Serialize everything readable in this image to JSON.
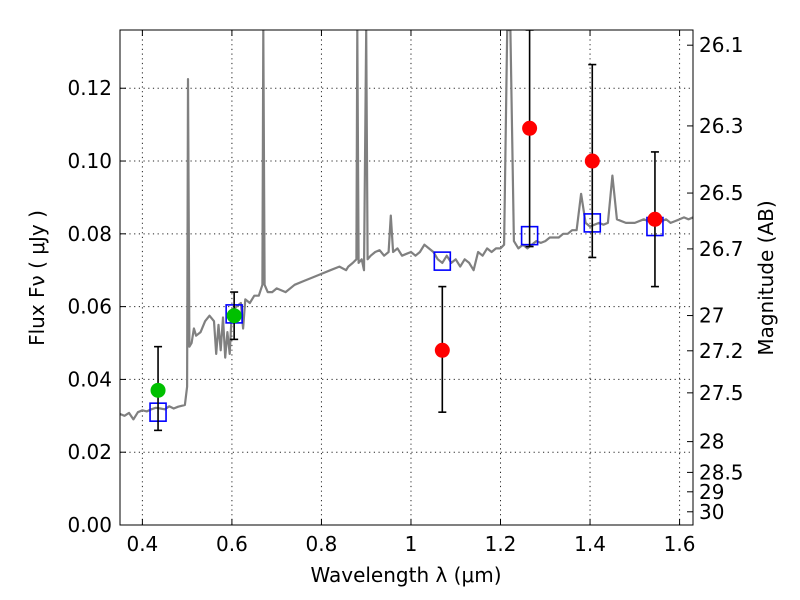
{
  "chart_data": {
    "type": "scatter",
    "title": "",
    "xlabel": "Wavelength  λ (μm)",
    "ylabel": "Flux  Fν  ( μJy )",
    "ylabel_right": "Magnitude (AB)",
    "xlim": [
      0.35,
      1.63
    ],
    "ylim": [
      0.0,
      0.136
    ],
    "grid": true,
    "x_ticks": [
      {
        "value": 0.4,
        "label": "0.4"
      },
      {
        "value": 0.6,
        "label": "0.6"
      },
      {
        "value": 0.8,
        "label": "0.8"
      },
      {
        "value": 1.0,
        "label": "1"
      },
      {
        "value": 1.2,
        "label": "1.2"
      },
      {
        "value": 1.4,
        "label": "1.4"
      },
      {
        "value": 1.6,
        "label": "1.6"
      }
    ],
    "y_ticks": [
      {
        "value": 0.0,
        "label": "0.00"
      },
      {
        "value": 0.02,
        "label": "0.02"
      },
      {
        "value": 0.04,
        "label": "0.04"
      },
      {
        "value": 0.06,
        "label": "0.06"
      },
      {
        "value": 0.08,
        "label": "0.08"
      },
      {
        "value": 0.1,
        "label": "0.10"
      },
      {
        "value": 0.12,
        "label": "0.12"
      }
    ],
    "right_ticks": [
      {
        "mag": 26.1,
        "label": "26.1"
      },
      {
        "mag": 26.3,
        "label": "26.3"
      },
      {
        "mag": 26.5,
        "label": "26.5"
      },
      {
        "mag": 26.7,
        "label": "26.7"
      },
      {
        "mag": 27.0,
        "label": "27"
      },
      {
        "mag": 27.2,
        "label": "27.2"
      },
      {
        "mag": 27.5,
        "label": "27.5"
      },
      {
        "mag": 28.0,
        "label": "28"
      },
      {
        "mag": 28.5,
        "label": "28.5"
      },
      {
        "mag": 29.0,
        "label": "29"
      },
      {
        "mag": 30.0,
        "label": "30"
      }
    ],
    "series": [
      {
        "kind": "line",
        "color": "#808080",
        "points": [
          [
            0.35,
            0.0305
          ],
          [
            0.36,
            0.03
          ],
          [
            0.37,
            0.0308
          ],
          [
            0.38,
            0.029
          ],
          [
            0.39,
            0.031
          ],
          [
            0.4,
            0.0315
          ],
          [
            0.41,
            0.0312
          ],
          [
            0.42,
            0.0318
          ],
          [
            0.43,
            0.0322
          ],
          [
            0.44,
            0.032
          ],
          [
            0.45,
            0.0318
          ],
          [
            0.46,
            0.0326
          ],
          [
            0.47,
            0.032
          ],
          [
            0.48,
            0.0325
          ],
          [
            0.49,
            0.0328
          ],
          [
            0.495,
            0.033
          ],
          [
            0.5,
            0.038
          ],
          [
            0.502,
            0.1225
          ],
          [
            0.505,
            0.049
          ],
          [
            0.51,
            0.05
          ],
          [
            0.515,
            0.054
          ],
          [
            0.52,
            0.052
          ],
          [
            0.53,
            0.053
          ],
          [
            0.54,
            0.056
          ],
          [
            0.55,
            0.0575
          ],
          [
            0.56,
            0.056
          ],
          [
            0.565,
            0.047
          ],
          [
            0.57,
            0.055
          ],
          [
            0.575,
            0.048
          ],
          [
            0.58,
            0.057
          ],
          [
            0.585,
            0.046
          ],
          [
            0.59,
            0.053
          ],
          [
            0.595,
            0.047
          ],
          [
            0.6,
            0.059
          ],
          [
            0.61,
            0.06
          ],
          [
            0.62,
            0.061
          ],
          [
            0.625,
            0.054
          ],
          [
            0.63,
            0.062
          ],
          [
            0.64,
            0.061
          ],
          [
            0.65,
            0.063
          ],
          [
            0.66,
            0.063
          ],
          [
            0.668,
            0.066
          ],
          [
            0.67,
            0.136
          ],
          [
            0.673,
            0.066
          ],
          [
            0.68,
            0.064
          ],
          [
            0.69,
            0.064
          ],
          [
            0.7,
            0.065
          ],
          [
            0.72,
            0.064
          ],
          [
            0.74,
            0.066
          ],
          [
            0.76,
            0.067
          ],
          [
            0.78,
            0.068
          ],
          [
            0.8,
            0.069
          ],
          [
            0.82,
            0.07
          ],
          [
            0.84,
            0.071
          ],
          [
            0.855,
            0.07
          ],
          [
            0.86,
            0.071
          ],
          [
            0.87,
            0.072
          ],
          [
            0.878,
            0.073
          ],
          [
            0.88,
            0.136
          ],
          [
            0.883,
            0.072
          ],
          [
            0.89,
            0.073
          ],
          [
            0.895,
            0.07
          ],
          [
            0.9,
            0.136
          ],
          [
            0.903,
            0.073
          ],
          [
            0.91,
            0.074
          ],
          [
            0.92,
            0.075
          ],
          [
            0.93,
            0.0755
          ],
          [
            0.94,
            0.074
          ],
          [
            0.95,
            0.075
          ],
          [
            0.955,
            0.085
          ],
          [
            0.96,
            0.075
          ],
          [
            0.97,
            0.076
          ],
          [
            0.98,
            0.074
          ],
          [
            0.99,
            0.0745
          ],
          [
            1.0,
            0.075
          ],
          [
            1.01,
            0.074
          ],
          [
            1.02,
            0.075
          ],
          [
            1.03,
            0.077
          ],
          [
            1.04,
            0.076
          ],
          [
            1.05,
            0.075
          ],
          [
            1.06,
            0.073
          ],
          [
            1.07,
            0.072
          ],
          [
            1.08,
            0.074
          ],
          [
            1.09,
            0.072
          ],
          [
            1.1,
            0.073
          ],
          [
            1.11,
            0.071
          ],
          [
            1.12,
            0.073
          ],
          [
            1.13,
            0.072
          ],
          [
            1.14,
            0.07
          ],
          [
            1.15,
            0.075
          ],
          [
            1.16,
            0.074
          ],
          [
            1.17,
            0.076
          ],
          [
            1.18,
            0.075
          ],
          [
            1.19,
            0.076
          ],
          [
            1.2,
            0.076
          ],
          [
            1.208,
            0.077
          ],
          [
            1.215,
            0.136
          ],
          [
            1.222,
            0.136
          ],
          [
            1.23,
            0.078
          ],
          [
            1.24,
            0.076
          ],
          [
            1.25,
            0.077
          ],
          [
            1.26,
            0.076
          ],
          [
            1.27,
            0.077
          ],
          [
            1.28,
            0.078
          ],
          [
            1.29,
            0.0775
          ],
          [
            1.3,
            0.078
          ],
          [
            1.31,
            0.079
          ],
          [
            1.32,
            0.079
          ],
          [
            1.33,
            0.079
          ],
          [
            1.34,
            0.08
          ],
          [
            1.35,
            0.08
          ],
          [
            1.36,
            0.081
          ],
          [
            1.37,
            0.081
          ],
          [
            1.38,
            0.091
          ],
          [
            1.39,
            0.083
          ],
          [
            1.4,
            0.082
          ],
          [
            1.41,
            0.0825
          ],
          [
            1.42,
            0.083
          ],
          [
            1.43,
            0.0825
          ],
          [
            1.44,
            0.083
          ],
          [
            1.45,
            0.096
          ],
          [
            1.46,
            0.084
          ],
          [
            1.48,
            0.083
          ],
          [
            1.5,
            0.083
          ],
          [
            1.52,
            0.084
          ],
          [
            1.54,
            0.083
          ],
          [
            1.55,
            0.084
          ],
          [
            1.56,
            0.0835
          ],
          [
            1.57,
            0.084
          ],
          [
            1.58,
            0.083
          ],
          [
            1.59,
            0.0835
          ],
          [
            1.6,
            0.084
          ],
          [
            1.61,
            0.0845
          ],
          [
            1.62,
            0.084
          ],
          [
            1.63,
            0.0845
          ]
        ]
      },
      {
        "kind": "model_squares",
        "color": "#0000ff",
        "points": [
          [
            0.435,
            0.031
          ],
          [
            0.605,
            0.058
          ],
          [
            1.07,
            0.0725
          ],
          [
            1.265,
            0.0795
          ],
          [
            1.405,
            0.083
          ],
          [
            1.545,
            0.082
          ]
        ]
      },
      {
        "kind": "points_with_errors",
        "color": "#00c000",
        "points": [
          {
            "x": 0.435,
            "y": 0.037,
            "ylo": 0.026,
            "yhi": 0.049
          },
          {
            "x": 0.605,
            "y": 0.0575,
            "ylo": 0.051,
            "yhi": 0.064
          }
        ]
      },
      {
        "kind": "points_with_errors",
        "color": "#ff0000",
        "points": [
          {
            "x": 1.07,
            "y": 0.048,
            "ylo": 0.031,
            "yhi": 0.0655
          },
          {
            "x": 1.265,
            "y": 0.109,
            "ylo": 0.0765,
            "yhi": 0.136
          },
          {
            "x": 1.405,
            "y": 0.1,
            "ylo": 0.0735,
            "yhi": 0.1265
          },
          {
            "x": 1.545,
            "y": 0.084,
            "ylo": 0.0655,
            "yhi": 0.1025
          }
        ]
      }
    ]
  }
}
